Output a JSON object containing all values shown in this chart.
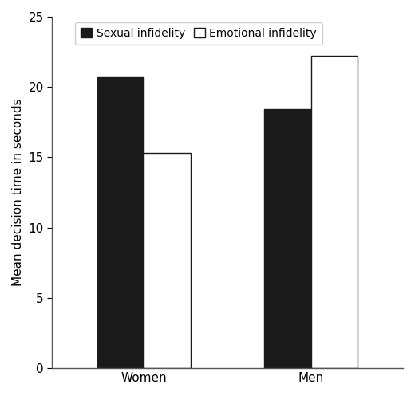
{
  "groups": [
    "Women",
    "Men"
  ],
  "sexual_infidelity": [
    20.7,
    18.4
  ],
  "emotional_infidelity": [
    15.3,
    22.2
  ],
  "bar_color_sexual": "#1a1a1a",
  "bar_color_emotional": "#ffffff",
  "bar_edge_color": "#1a1a1a",
  "ylabel": "Mean decision time in seconds",
  "ylim": [
    0,
    25
  ],
  "yticks": [
    0,
    5,
    10,
    15,
    20,
    25
  ],
  "legend_labels": [
    "Sexual infidelity",
    "Emotional infidelity"
  ],
  "bar_width": 0.28,
  "group_centers": [
    0.0,
    1.0
  ],
  "xlim": [
    -0.55,
    1.55
  ],
  "background_color": "#ffffff",
  "tick_fontsize": 11,
  "label_fontsize": 11,
  "legend_fontsize": 10,
  "figsize": [
    5.2,
    4.97
  ],
  "dpi": 100
}
